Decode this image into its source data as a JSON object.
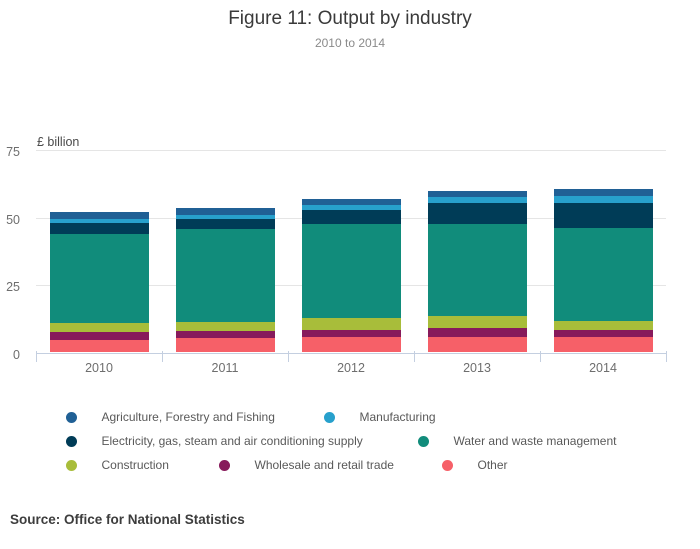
{
  "chart_data": {
    "type": "bar",
    "stacked": true,
    "title": "Figure 11: Output by industry",
    "subtitle": "2010 to 2014",
    "ylabel": "£ billion",
    "ylim": [
      0,
      75
    ],
    "yticks": [
      0,
      25,
      50,
      75
    ],
    "grid": "horizontal-only",
    "legend_position": "bottom",
    "categories": [
      "2010",
      "2011",
      "2012",
      "2013",
      "2014"
    ],
    "series_order": "bottom-to-top",
    "series": [
      {
        "name": "Other",
        "color": "#f66068",
        "values": [
          4.8,
          5.4,
          5.8,
          5.6,
          5.6
        ]
      },
      {
        "name": "Wholesale and retail trade",
        "color": "#871a5b",
        "values": [
          2.7,
          2.4,
          2.7,
          3.3,
          2.6
        ]
      },
      {
        "name": "Construction",
        "color": "#a8bd3a",
        "values": [
          3.5,
          3.5,
          4.4,
          4.5,
          3.3
        ]
      },
      {
        "name": "Water and waste management",
        "color": "#118c7b",
        "values": [
          32.9,
          34.3,
          34.6,
          34.1,
          34.6
        ]
      },
      {
        "name": "Electricity, gas, steam and air conditioning supply",
        "color": "#003c57",
        "values": [
          4.2,
          3.8,
          5.3,
          7.9,
          9.3
        ]
      },
      {
        "name": "Manufacturing",
        "color": "#27a0cc",
        "values": [
          1.4,
          1.5,
          1.9,
          2.2,
          2.6
        ]
      },
      {
        "name": "Agriculture, Forestry and Fishing",
        "color": "#206095",
        "values": [
          2.4,
          2.6,
          2.2,
          2.3,
          2.6
        ]
      }
    ],
    "stack_totals": [
      51.9,
      53.5,
      56.9,
      59.9,
      60.6
    ]
  },
  "source": {
    "text": "Source: Office for National Statistics"
  }
}
